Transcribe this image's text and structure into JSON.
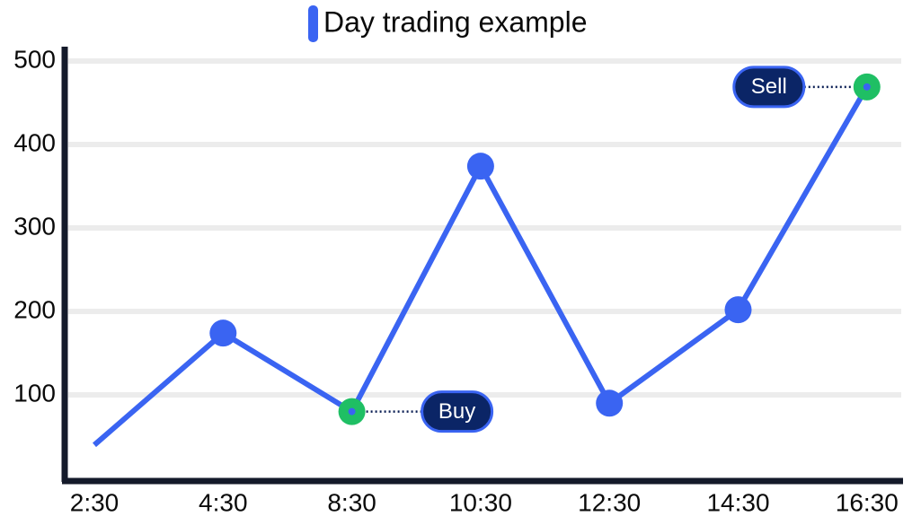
{
  "chart_data": {
    "type": "line",
    "categories": [
      "2:30",
      "4:30",
      "8:30",
      "10:30",
      "12:30",
      "14:30",
      "16:30"
    ],
    "series": [
      {
        "name": "Day trading example",
        "color": "#3a64f2",
        "values": [
          40,
          174,
          80,
          374,
          90,
          202,
          469
        ]
      }
    ],
    "ylim": [
      0,
      500
    ],
    "yticks": [
      100,
      200,
      300,
      400,
      500
    ],
    "grid": true,
    "annotations": [
      {
        "text": "Buy",
        "point": 2,
        "side": "right",
        "color": "#1fbf64"
      },
      {
        "text": "Sell",
        "point": 6,
        "side": "left",
        "color": "#1fbf64"
      }
    ]
  }
}
